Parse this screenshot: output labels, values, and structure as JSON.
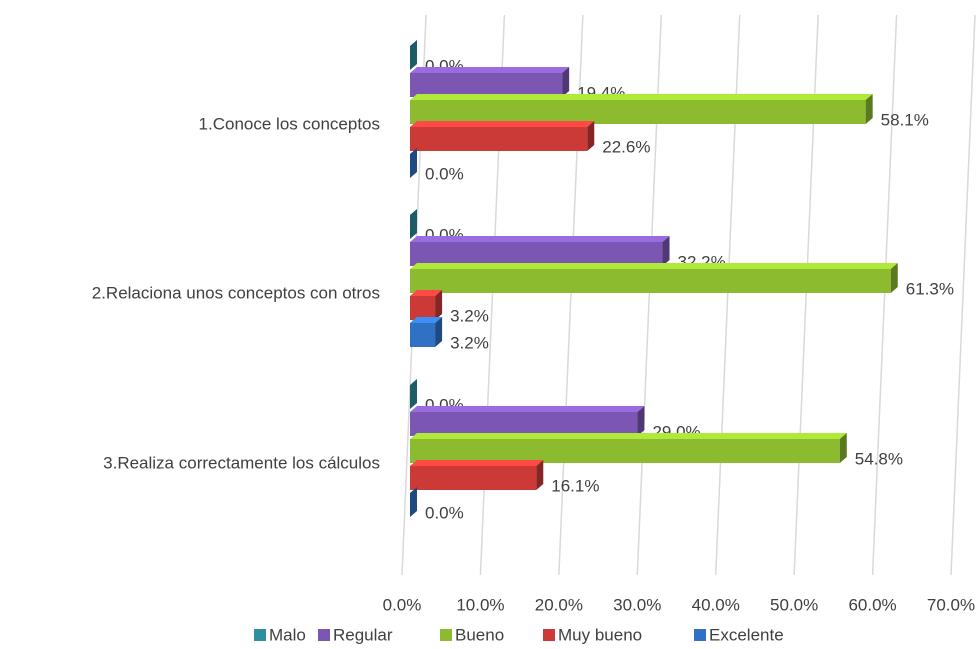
{
  "chart_data": {
    "type": "bar3d_horizontal",
    "categories": [
      "1.Conoce los conceptos",
      "2.Relaciona unos conceptos con otros",
      "3.Realiza correctamente los cálculos"
    ],
    "series": [
      {
        "name": "Malo",
        "color": "#2e8f9e",
        "values": [
          0,
          0,
          0
        ],
        "value_labels": [
          "0.0%",
          "0.0%",
          "0.0%"
        ]
      },
      {
        "name": "Regular",
        "color": "#7b56b3",
        "values": [
          19.4,
          32.2,
          29.0
        ],
        "value_labels": [
          "19.4%",
          "32.2%",
          "29.0%"
        ]
      },
      {
        "name": "Bueno",
        "color": "#8cbb2f",
        "values": [
          58.1,
          61.3,
          54.8
        ],
        "value_labels": [
          "58.1%",
          "61.3%",
          "54.8%"
        ]
      },
      {
        "name": "Muy bueno",
        "color": "#cc3a37",
        "values": [
          22.6,
          3.2,
          16.1
        ],
        "value_labels": [
          "22.6%",
          "3.2%",
          "16.1%"
        ]
      },
      {
        "name": "Excelente",
        "color": "#2f72c5",
        "values": [
          0,
          3.2,
          0
        ],
        "value_labels": [
          "0.0%",
          "3.2%",
          "0.0%"
        ]
      }
    ],
    "xlim": [
      0,
      70
    ],
    "xticks": [
      {
        "value": 0,
        "label": "0.0%"
      },
      {
        "value": 10,
        "label": "10.0%"
      },
      {
        "value": 20,
        "label": "20.0%"
      },
      {
        "value": 30,
        "label": "30.0%"
      },
      {
        "value": 40,
        "label": "40.0%"
      },
      {
        "value": 50,
        "label": "50.0%"
      },
      {
        "value": 60,
        "label": "60.0%"
      },
      {
        "value": 70,
        "label": "70.0%"
      }
    ],
    "grid": true,
    "legend": "bottom"
  }
}
